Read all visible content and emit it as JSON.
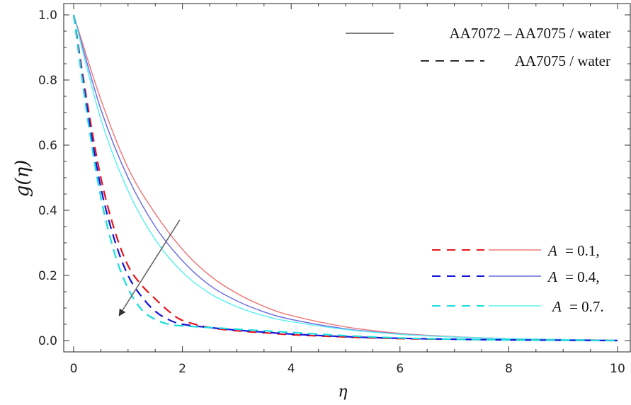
{
  "chart_data": {
    "type": "line",
    "title": "",
    "xlabel": "η",
    "ylabel": "g(η)",
    "xlim": [
      0,
      10
    ],
    "ylim": [
      0,
      1.0
    ],
    "xticks": [
      0,
      2,
      4,
      6,
      8,
      10
    ],
    "yticks": [
      0.0,
      0.2,
      0.4,
      0.6,
      0.8,
      1.0
    ],
    "xtick_labels": [
      "0",
      "2",
      "4",
      "6",
      "8",
      "10"
    ],
    "ytick_labels": [
      "0.0",
      "0.2",
      "0.4",
      "0.6",
      "0.8",
      "1.0"
    ],
    "grid": false,
    "legend_fluids": {
      "position": "top-right",
      "entries": [
        {
          "label": "AA7072 – AA7075 / water",
          "style": "solid",
          "color": "#555555"
        },
        {
          "label": "AA7075 / water",
          "style": "dashed",
          "color": "#111111"
        }
      ]
    },
    "legend_params": {
      "position": "lower-right",
      "entries": [
        {
          "symbol": "A",
          "value": "= 0.1,",
          "dashed_color": "#e8141c",
          "solid_color": "#f07a7a"
        },
        {
          "symbol": "A",
          "value": "= 0.4,",
          "dashed_color": "#1414d8",
          "solid_color": "#6e6ee6"
        },
        {
          "symbol": "A",
          "value": "= 0.7.",
          "dashed_color": "#18dede",
          "solid_color": "#5ef0f0"
        }
      ]
    },
    "arrow": {
      "from": [
        1.95,
        0.37
      ],
      "to": [
        0.85,
        0.08
      ],
      "color": "#555555",
      "meaning": "increasing A"
    },
    "series": [
      {
        "fluid": "AA7072 – AA7075 / water",
        "A": 0.1,
        "style": "solid",
        "color": "#f07a7a",
        "x": [
          0,
          0.5,
          1,
          1.5,
          2,
          2.5,
          3,
          3.5,
          4,
          5,
          6,
          7,
          8,
          9,
          10
        ],
        "y": [
          1.0,
          0.74,
          0.53,
          0.39,
          0.28,
          0.2,
          0.145,
          0.105,
          0.077,
          0.042,
          0.022,
          0.012,
          0.006,
          0.003,
          0.001
        ]
      },
      {
        "fluid": "AA7072 – AA7075 / water",
        "A": 0.4,
        "style": "solid",
        "color": "#6e6ee6",
        "x": [
          0,
          0.5,
          1,
          1.5,
          2,
          2.5,
          3,
          3.5,
          4,
          5,
          6,
          7,
          8,
          9,
          10
        ],
        "y": [
          1.0,
          0.71,
          0.5,
          0.35,
          0.245,
          0.17,
          0.122,
          0.088,
          0.065,
          0.036,
          0.02,
          0.011,
          0.006,
          0.003,
          0.001
        ]
      },
      {
        "fluid": "AA7072 – AA7075 / water",
        "A": 0.7,
        "style": "solid",
        "color": "#5ef0f0",
        "x": [
          0,
          0.5,
          1,
          1.5,
          2,
          2.5,
          3,
          3.5,
          4,
          5,
          6,
          7,
          8,
          9,
          10
        ],
        "y": [
          1.0,
          0.68,
          0.46,
          0.31,
          0.21,
          0.145,
          0.104,
          0.076,
          0.058,
          0.034,
          0.019,
          0.011,
          0.006,
          0.003,
          0.001
        ]
      },
      {
        "fluid": "AA7075 / water",
        "A": 0.1,
        "style": "dashed",
        "color": "#e8141c",
        "x": [
          0,
          0.25,
          0.5,
          0.75,
          1,
          1.25,
          1.5,
          1.75,
          2,
          2.5,
          3,
          3.5,
          4,
          5,
          6,
          7,
          8,
          9,
          10
        ],
        "y": [
          1.0,
          0.73,
          0.5,
          0.34,
          0.23,
          0.17,
          0.128,
          0.09,
          0.062,
          0.04,
          0.03,
          0.024,
          0.018,
          0.011,
          0.006,
          0.004,
          0.002,
          0.001,
          0.0
        ]
      },
      {
        "fluid": "AA7075 / water",
        "A": 0.4,
        "style": "dashed",
        "color": "#1414d8",
        "x": [
          0,
          0.25,
          0.5,
          0.75,
          1,
          1.25,
          1.5,
          1.75,
          2,
          2.5,
          3,
          3.5,
          4,
          5,
          6,
          7,
          8,
          9,
          10
        ],
        "y": [
          1.0,
          0.71,
          0.47,
          0.31,
          0.2,
          0.135,
          0.09,
          0.064,
          0.05,
          0.04,
          0.032,
          0.026,
          0.02,
          0.012,
          0.007,
          0.004,
          0.002,
          0.001,
          0.0
        ]
      },
      {
        "fluid": "AA7075 / water",
        "A": 0.7,
        "style": "dashed",
        "color": "#18dede",
        "x": [
          0,
          0.25,
          0.5,
          0.75,
          1,
          1.25,
          1.5,
          1.75,
          2,
          2.5,
          3,
          3.5,
          4,
          5,
          6,
          7,
          8,
          9,
          10
        ],
        "y": [
          1.0,
          0.69,
          0.44,
          0.27,
          0.16,
          0.095,
          0.065,
          0.05,
          0.045,
          0.04,
          0.035,
          0.03,
          0.025,
          0.015,
          0.008,
          0.004,
          0.002,
          0.001,
          0.0
        ]
      }
    ]
  }
}
